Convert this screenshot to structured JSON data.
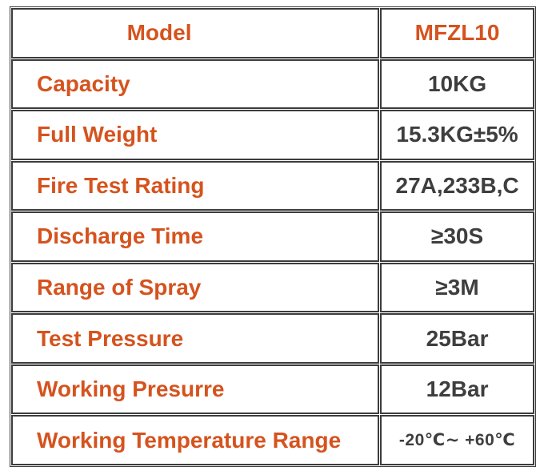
{
  "colors": {
    "accent": "#d5531e",
    "text": "#3e3e3e",
    "border": "#3c3c3c",
    "background": "#ffffff"
  },
  "table": {
    "rows": [
      {
        "label": "Model",
        "value": "MFZL10"
      },
      {
        "label": "Capacity",
        "value": "10KG"
      },
      {
        "label": "Full Weight",
        "value": "15.3KG±5%"
      },
      {
        "label": "Fire Test Rating",
        "value": "27A,233B,C"
      },
      {
        "label": "Discharge Time",
        "value": "≥30S"
      },
      {
        "label": "Range of Spray",
        "value": "≥3M"
      },
      {
        "label": "Test Pressure",
        "value": "25Bar"
      },
      {
        "label": "Working Presurre",
        "value": "12Bar"
      },
      {
        "label": "Working Temperature Range",
        "value": "-20℃∼ +60℃"
      }
    ]
  }
}
